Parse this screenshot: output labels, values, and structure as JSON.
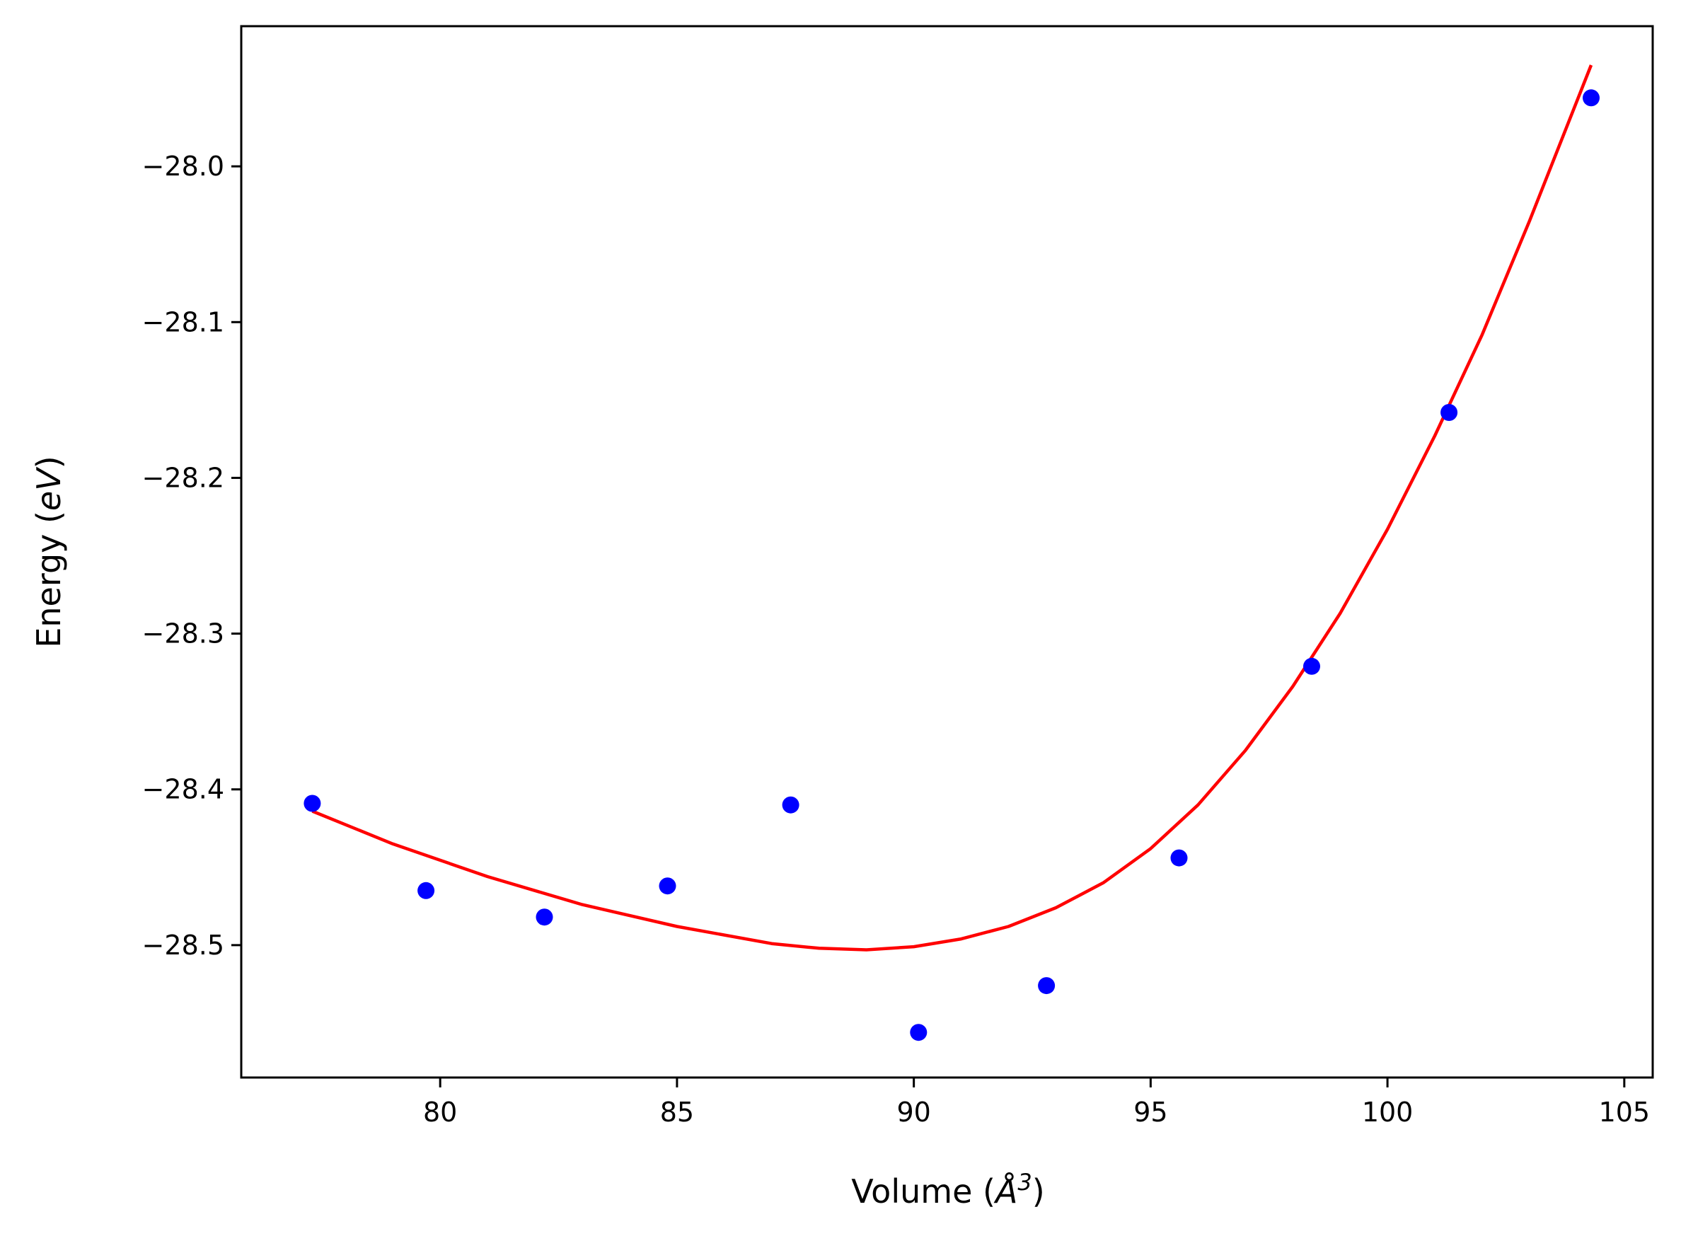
{
  "chart_data": {
    "type": "scatter",
    "xlabel": {
      "pre": "Volume (",
      "unit": "Å",
      "sup": "3",
      "post": ")"
    },
    "ylabel": {
      "pre": "Energy (",
      "unit": "eV",
      "post": ")"
    },
    "xlim": [
      75.8,
      105.6
    ],
    "ylim": [
      -28.585,
      -27.91
    ],
    "x_ticks": [
      80,
      85,
      90,
      95,
      100,
      105
    ],
    "y_ticks": [
      -28.0,
      -28.1,
      -28.2,
      -28.3,
      -28.4,
      -28.5
    ],
    "x_tick_labels": [
      "80",
      "85",
      "90",
      "95",
      "100",
      "105"
    ],
    "y_tick_labels": [
      "−28.0",
      "−28.1",
      "−28.2",
      "−28.3",
      "−28.4",
      "−28.5"
    ],
    "grid": false,
    "series": [
      {
        "kind": "scatter",
        "color": "#0000ff",
        "x": [
          77.3,
          79.7,
          82.2,
          84.8,
          87.4,
          90.1,
          92.8,
          95.6,
          98.4,
          101.3,
          104.3
        ],
        "y": [
          -28.409,
          -28.465,
          -28.482,
          -28.462,
          -28.41,
          -28.556,
          -28.526,
          -28.444,
          -28.321,
          -28.158,
          -27.956
        ]
      },
      {
        "kind": "line",
        "color": "#ff0000",
        "x": [
          77.3,
          79.0,
          81.0,
          83.0,
          85.0,
          87.0,
          88.0,
          89.0,
          90.0,
          91.0,
          92.0,
          93.0,
          94.0,
          95.0,
          96.0,
          97.0,
          98.0,
          99.0,
          100.0,
          101.0,
          102.0,
          103.0,
          104.3
        ],
        "y": [
          -28.414,
          -28.435,
          -28.456,
          -28.474,
          -28.488,
          -28.499,
          -28.502,
          -28.503,
          -28.501,
          -28.496,
          -28.488,
          -28.476,
          -28.46,
          -28.438,
          -28.41,
          -28.375,
          -28.334,
          -28.287,
          -28.233,
          -28.173,
          -28.108,
          -28.035,
          -27.935
        ]
      }
    ]
  }
}
